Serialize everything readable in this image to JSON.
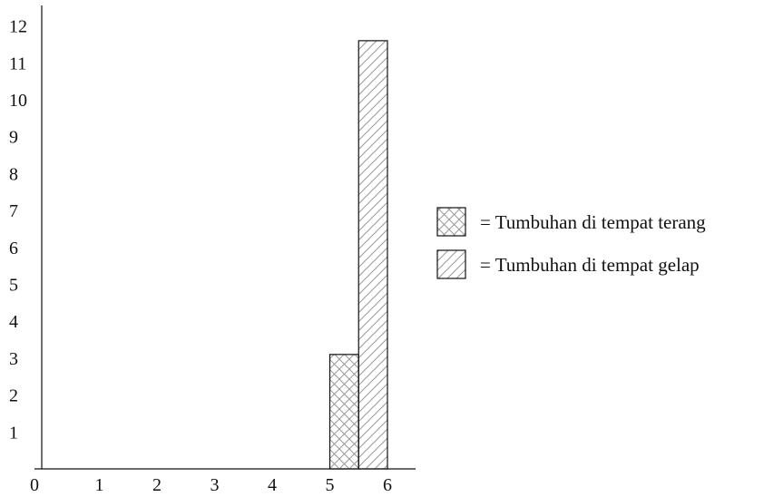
{
  "chart_data": {
    "type": "bar",
    "title": "",
    "xlabel": "",
    "ylabel": "",
    "xlim": [
      0,
      6.5
    ],
    "ylim": [
      0,
      12.5
    ],
    "x_ticks": [
      0,
      1,
      2,
      3,
      4,
      5,
      6
    ],
    "y_ticks": [
      1,
      2,
      3,
      4,
      5,
      6,
      7,
      8,
      9,
      10,
      11,
      12
    ],
    "grid": false,
    "legend_position": "right",
    "series": [
      {
        "name": "= Tumbuhan di tempat terang",
        "pattern": "crosshatch",
        "bars": [
          {
            "x_start": 5.0,
            "x_end": 5.5,
            "value": 3.1
          }
        ]
      },
      {
        "name": "= Tumbuhan di tempat gelap",
        "pattern": "diagonal",
        "bars": [
          {
            "x_start": 5.5,
            "x_end": 6.0,
            "value": 11.6
          }
        ]
      }
    ],
    "colors": {
      "outline": "#111111",
      "hatch": "#9a9a9a"
    }
  }
}
